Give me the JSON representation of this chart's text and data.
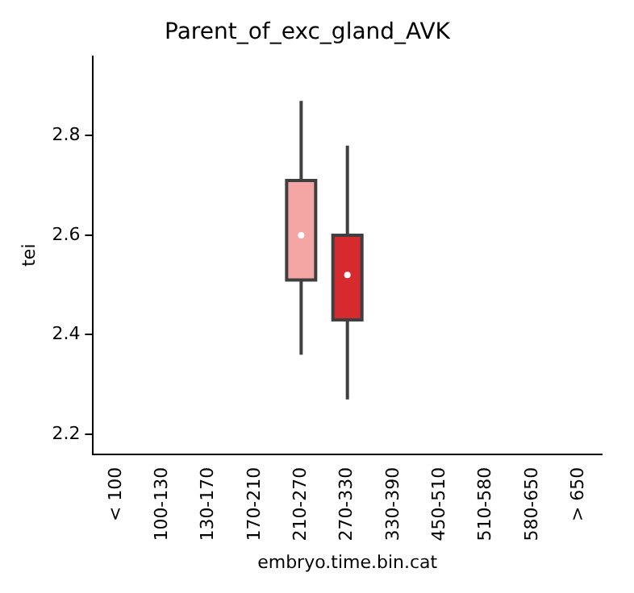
{
  "chart_data": {
    "type": "box",
    "title": "Parent_of_exc_gland_AVK",
    "xlabel": "embryo.time.bin.cat",
    "ylabel": "tei",
    "categories": [
      "< 100",
      "100-130",
      "130-170",
      "170-210",
      "210-270",
      "270-330",
      "330-390",
      "450-510",
      "510-580",
      "580-650",
      "> 650"
    ],
    "boxes": [
      null,
      null,
      null,
      null,
      {
        "low": 2.36,
        "q1": 2.51,
        "median": 2.6,
        "q3": 2.71,
        "high": 2.87
      },
      {
        "low": 2.27,
        "q1": 2.43,
        "median": 2.52,
        "q3": 2.6,
        "high": 2.78
      },
      null,
      null,
      null,
      null,
      null
    ],
    "colors": [
      null,
      null,
      null,
      null,
      "#f3a6a4",
      "#d62a2e",
      null,
      null,
      null,
      null,
      null
    ],
    "ylim": [
      2.16,
      2.96
    ],
    "yticks": [
      2.2,
      2.4,
      2.6,
      2.8
    ],
    "grid": false,
    "legend": false
  }
}
